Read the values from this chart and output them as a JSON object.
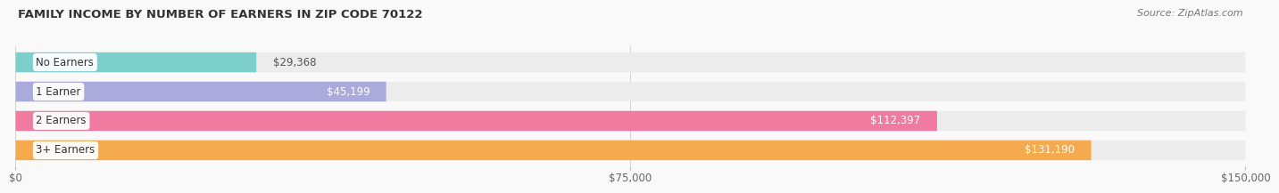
{
  "title": "FAMILY INCOME BY NUMBER OF EARNERS IN ZIP CODE 70122",
  "source": "Source: ZipAtlas.com",
  "categories": [
    "No Earners",
    "1 Earner",
    "2 Earners",
    "3+ Earners"
  ],
  "values": [
    29368,
    45199,
    112397,
    131190
  ],
  "bar_colors": [
    "#7dcfcc",
    "#aaaadd",
    "#f07aa0",
    "#f5aa50"
  ],
  "bar_bg_color": "#ececec",
  "xlim": [
    0,
    150000
  ],
  "xticks": [
    0,
    75000,
    150000
  ],
  "xtick_labels": [
    "$0",
    "$75,000",
    "$150,000"
  ],
  "label_fontsize": 8.5,
  "title_fontsize": 9.5,
  "source_fontsize": 8,
  "value_label_color_inside": "#ffffff",
  "value_label_color_outside": "#555555",
  "background_color": "#f9f9f9",
  "bar_height": 0.68,
  "bar_rounding": 8000
}
